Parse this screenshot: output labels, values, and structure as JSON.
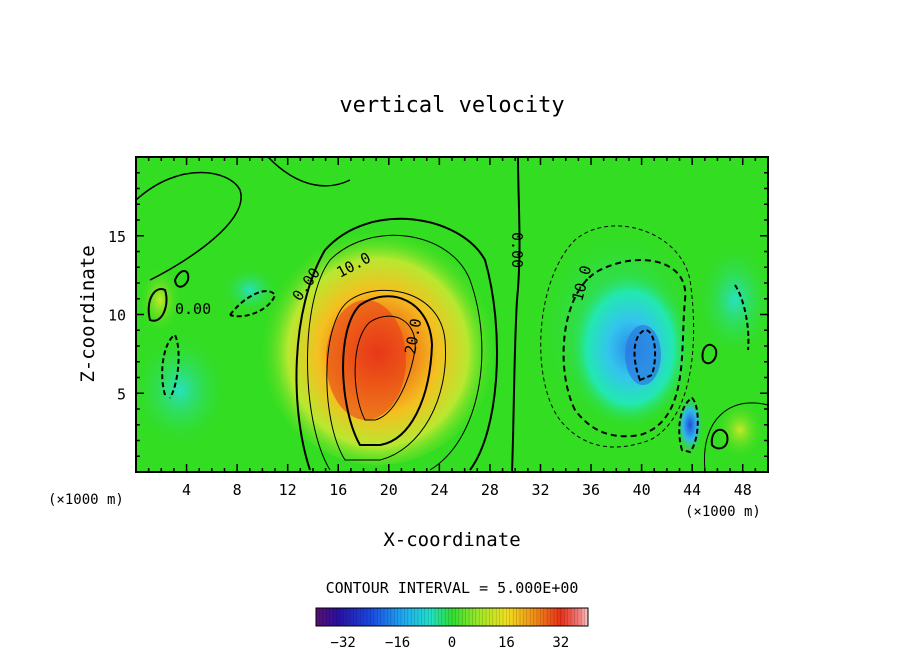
{
  "chart_data": {
    "type": "heatmap",
    "title": "vertical velocity",
    "xlabel": "X-coordinate",
    "ylabel": "Z-coordinate",
    "x_unit": "(×1000 m)",
    "y_unit": "(×1000 m)",
    "x_ticks": [
      "4",
      "8",
      "12",
      "16",
      "20",
      "24",
      "28",
      "32",
      "36",
      "40",
      "44",
      "48"
    ],
    "y_ticks": [
      "5",
      "10",
      "15"
    ],
    "xlim": [
      0,
      50
    ],
    "ylim": [
      0,
      20
    ],
    "contour_interval_text": "CONTOUR INTERVAL = 5.000E+00",
    "contour_labels": [
      "10.0",
      "20.0",
      "0.00",
      "0.00",
      "0.00",
      "10.0"
    ],
    "colorbar_ticks": [
      "−32",
      "−16",
      "0",
      "16",
      "32"
    ],
    "colorbar_range": [
      -40,
      40
    ],
    "features": [
      {
        "kind": "updraft",
        "x": 18,
        "z": 7,
        "peak": 30
      },
      {
        "kind": "downdraft",
        "x": 40,
        "z": 8,
        "peak": -22
      },
      {
        "kind": "downdraft",
        "x": 44,
        "z": 3,
        "peak": -25
      }
    ]
  }
}
